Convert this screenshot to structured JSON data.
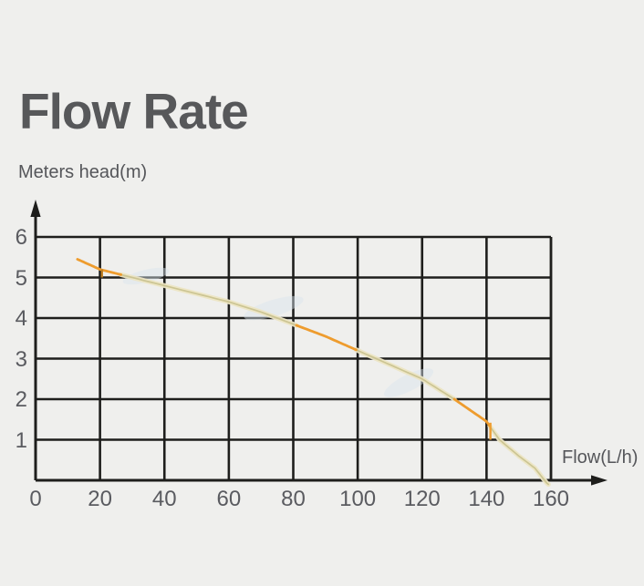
{
  "title": "Flow Rate",
  "colors": {
    "background": "#efefed",
    "title_text": "#57585a",
    "label_text": "#55565a",
    "tick_text": "#5a5b60",
    "grid_line": "#1e1e1c",
    "curve_orange": "#ee9c2e",
    "curve_pale_outer": "#ece5c4",
    "curve_pale_inner": "#c6be8a",
    "artifact_dark_orange": "#bd7d21",
    "smudge_blue": "#d9e5ee"
  },
  "chart_data": {
    "type": "line",
    "title": "Flow Rate",
    "xlabel": "Flow(L/h)",
    "ylabel": "Meters head(m)",
    "xlim": [
      0,
      160
    ],
    "ylim": [
      0,
      6
    ],
    "x_ticks": [
      0,
      20,
      40,
      60,
      80,
      100,
      120,
      140,
      160
    ],
    "y_ticks": [
      6,
      5,
      4,
      3,
      2,
      1
    ],
    "grid": true,
    "legend": false,
    "series": [
      {
        "name": "pump-head-curve",
        "x": [
          13,
          20,
          30,
          40,
          50,
          60,
          70,
          80,
          90,
          100,
          110,
          120,
          130,
          140,
          144,
          150,
          155,
          159
        ],
        "y": [
          5.45,
          5.2,
          5.0,
          4.8,
          4.6,
          4.4,
          4.15,
          3.85,
          3.55,
          3.2,
          2.85,
          2.5,
          2.0,
          1.45,
          1.0,
          0.6,
          0.3,
          -0.1
        ]
      }
    ],
    "style_segments": {
      "orange_flow_ranges": [
        [
          13,
          26.5
        ],
        [
          81,
          99.5
        ],
        [
          130,
          141
        ]
      ],
      "pale_flow_ranges": [
        [
          26.5,
          81
        ],
        [
          99.5,
          130
        ],
        [
          141,
          159.2
        ]
      ]
    },
    "artifacts": [
      {
        "name": "orange-drop-tick-at-20",
        "x": 20.6,
        "y_from": 5.2,
        "y_to": 5.0,
        "tone": "dark"
      },
      {
        "name": "orange-drop-tick-at-140",
        "x": 141.2,
        "y_from": 1.42,
        "y_to": 1.0,
        "tone": "normal"
      }
    ]
  }
}
